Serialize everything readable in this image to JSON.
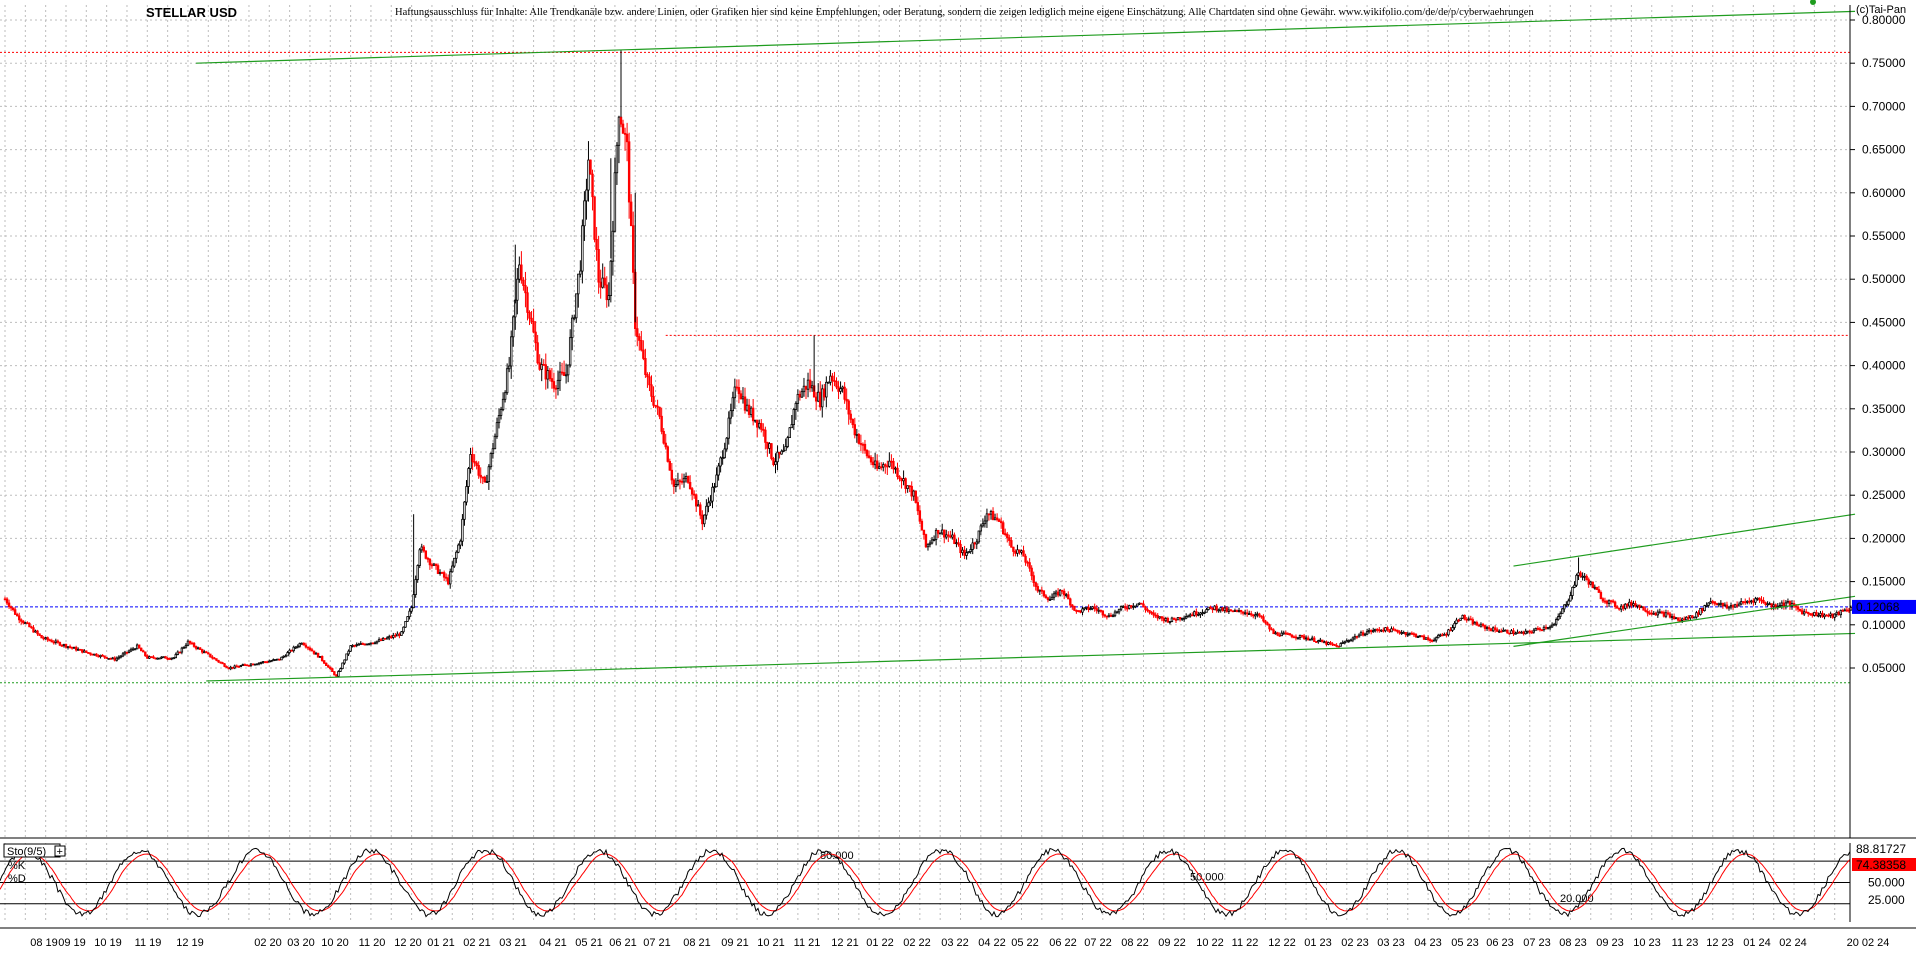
{
  "header": {
    "title": "STELLAR USD",
    "disclaimer": "Haftungsausschluss für Inhalte: Alle Trendkanäle bzw. andere Linien, oder Grafiken hier sind keine Empfehlungen, oder Beratung, sondern die zeigen lediglich meine eigene Einschätzung. Alle Chartdaten sind ohne Gewähr.  www.wikifolio.com/de/de/p/cyberwaehrungen",
    "copyright": "(c)Tai-Pan"
  },
  "colors": {
    "background": "#ffffff",
    "grid": "#bdbdbd",
    "candle_up": "#000000",
    "candle_down": "#ff0000",
    "trendline": "#1f9c1f",
    "current_price_line": "#0000ff",
    "resistance_line": "#ff0000",
    "price_badge": "#0000ff",
    "percent_d_badge": "#ff0000"
  },
  "chart_data": [
    {
      "type": "candlestick",
      "title": "STELLAR USD",
      "ylim": [
        0.03,
        0.81
      ],
      "y_ticks": [
        "0.80000",
        "0.75000",
        "0.70000",
        "0.65000",
        "0.60000",
        "0.55000",
        "0.50000",
        "0.45000",
        "0.40000",
        "0.35000",
        "0.30000",
        "0.25000",
        "0.20000",
        "0.15000",
        "0.10000",
        "0.05000"
      ],
      "y_tick_values": [
        0.8,
        0.75,
        0.7,
        0.65,
        0.6,
        0.55,
        0.5,
        0.45,
        0.4,
        0.35,
        0.3,
        0.25,
        0.2,
        0.15,
        0.1,
        0.05
      ],
      "x_ticks": [
        "08 19",
        "09 19",
        "10 19",
        "11 19",
        "12 19",
        "02 20",
        "03 20",
        "10 20",
        "11 20",
        "12 20",
        "01 21",
        "02 21",
        "03 21",
        "04 21",
        "05 21",
        "06 21",
        "07 21",
        "08 21",
        "09 21",
        "10 21",
        "11 21",
        "12 21",
        "01 22",
        "02 22",
        "03 22",
        "04 22",
        "05 22",
        "06 22",
        "07 22",
        "08 22",
        "09 22",
        "10 22",
        "11 22",
        "12 22",
        "01 23",
        "02 23",
        "03 23",
        "04 23",
        "05 23",
        "06 23",
        "07 23",
        "08 23",
        "09 23",
        "10 23",
        "11 23",
        "12 23",
        "01 24",
        "02 24",
        "20 02 24"
      ],
      "current_price": 0.12068,
      "current_price_label": "0.12068",
      "resistance_level": 0.7625,
      "secondary_resistance_level": 0.435,
      "support_level": 0.033,
      "price_path": [
        {
          "t": 0.0,
          "p": 0.13
        },
        {
          "t": 0.6,
          "p": 0.11
        },
        {
          "t": 1.8,
          "p": 0.085
        },
        {
          "t": 4.0,
          "p": 0.068
        },
        {
          "t": 5.4,
          "p": 0.06
        },
        {
          "t": 6.5,
          "p": 0.075
        },
        {
          "t": 7.0,
          "p": 0.062
        },
        {
          "t": 8.3,
          "p": 0.062
        },
        {
          "t": 9.0,
          "p": 0.08
        },
        {
          "t": 10.0,
          "p": 0.065
        },
        {
          "t": 11.0,
          "p": 0.05
        },
        {
          "t": 12.2,
          "p": 0.055
        },
        {
          "t": 13.5,
          "p": 0.06
        },
        {
          "t": 14.6,
          "p": 0.08
        },
        {
          "t": 15.5,
          "p": 0.062
        },
        {
          "t": 16.3,
          "p": 0.04
        },
        {
          "t": 17.0,
          "p": 0.075
        },
        {
          "t": 18.5,
          "p": 0.082
        },
        {
          "t": 19.5,
          "p": 0.09
        },
        {
          "t": 20.0,
          "p": 0.12
        },
        {
          "t": 20.4,
          "p": 0.19
        },
        {
          "t": 21.0,
          "p": 0.17
        },
        {
          "t": 21.8,
          "p": 0.15
        },
        {
          "t": 22.4,
          "p": 0.2
        },
        {
          "t": 22.9,
          "p": 0.3
        },
        {
          "t": 23.6,
          "p": 0.26
        },
        {
          "t": 24.2,
          "p": 0.33
        },
        {
          "t": 24.8,
          "p": 0.4
        },
        {
          "t": 25.3,
          "p": 0.52
        },
        {
          "t": 25.8,
          "p": 0.46
        },
        {
          "t": 26.3,
          "p": 0.4
        },
        {
          "t": 27.0,
          "p": 0.38
        },
        {
          "t": 27.6,
          "p": 0.39
        },
        {
          "t": 28.3,
          "p": 0.52
        },
        {
          "t": 28.7,
          "p": 0.64
        },
        {
          "t": 29.2,
          "p": 0.5
        },
        {
          "t": 29.7,
          "p": 0.48
        },
        {
          "t": 30.2,
          "p": 0.7
        },
        {
          "t": 30.6,
          "p": 0.65
        },
        {
          "t": 31.0,
          "p": 0.45
        },
        {
          "t": 31.6,
          "p": 0.38
        },
        {
          "t": 32.2,
          "p": 0.34
        },
        {
          "t": 32.9,
          "p": 0.26
        },
        {
          "t": 33.6,
          "p": 0.27
        },
        {
          "t": 34.3,
          "p": 0.22
        },
        {
          "t": 35.0,
          "p": 0.27
        },
        {
          "t": 35.5,
          "p": 0.32
        },
        {
          "t": 36.0,
          "p": 0.38
        },
        {
          "t": 36.5,
          "p": 0.35
        },
        {
          "t": 37.2,
          "p": 0.33
        },
        {
          "t": 37.8,
          "p": 0.29
        },
        {
          "t": 38.4,
          "p": 0.3
        },
        {
          "t": 38.9,
          "p": 0.36
        },
        {
          "t": 39.5,
          "p": 0.38
        },
        {
          "t": 40.1,
          "p": 0.36
        },
        {
          "t": 40.6,
          "p": 0.39
        },
        {
          "t": 41.2,
          "p": 0.37
        },
        {
          "t": 41.7,
          "p": 0.33
        },
        {
          "t": 42.3,
          "p": 0.3
        },
        {
          "t": 42.9,
          "p": 0.28
        },
        {
          "t": 43.5,
          "p": 0.29
        },
        {
          "t": 44.1,
          "p": 0.27
        },
        {
          "t": 44.7,
          "p": 0.25
        },
        {
          "t": 45.3,
          "p": 0.19
        },
        {
          "t": 45.9,
          "p": 0.21
        },
        {
          "t": 46.6,
          "p": 0.2
        },
        {
          "t": 47.2,
          "p": 0.18
        },
        {
          "t": 47.8,
          "p": 0.2
        },
        {
          "t": 48.3,
          "p": 0.23
        },
        {
          "t": 48.9,
          "p": 0.22
        },
        {
          "t": 49.5,
          "p": 0.19
        },
        {
          "t": 50.1,
          "p": 0.18
        },
        {
          "t": 50.8,
          "p": 0.14
        },
        {
          "t": 51.4,
          "p": 0.13
        },
        {
          "t": 52.0,
          "p": 0.14
        },
        {
          "t": 52.7,
          "p": 0.115
        },
        {
          "t": 53.5,
          "p": 0.12
        },
        {
          "t": 54.3,
          "p": 0.11
        },
        {
          "t": 55.0,
          "p": 0.12
        },
        {
          "t": 55.8,
          "p": 0.125
        },
        {
          "t": 56.5,
          "p": 0.11
        },
        {
          "t": 57.3,
          "p": 0.105
        },
        {
          "t": 58.0,
          "p": 0.11
        },
        {
          "t": 58.8,
          "p": 0.115
        },
        {
          "t": 59.5,
          "p": 0.12
        },
        {
          "t": 60.3,
          "p": 0.115
        },
        {
          "t": 61.0,
          "p": 0.115
        },
        {
          "t": 61.7,
          "p": 0.11
        },
        {
          "t": 62.4,
          "p": 0.09
        },
        {
          "t": 63.2,
          "p": 0.088
        },
        {
          "t": 64.0,
          "p": 0.085
        },
        {
          "t": 64.8,
          "p": 0.08
        },
        {
          "t": 65.5,
          "p": 0.075
        },
        {
          "t": 66.3,
          "p": 0.085
        },
        {
          "t": 67.0,
          "p": 0.092
        },
        {
          "t": 67.8,
          "p": 0.095
        },
        {
          "t": 68.6,
          "p": 0.092
        },
        {
          "t": 69.4,
          "p": 0.088
        },
        {
          "t": 70.1,
          "p": 0.082
        },
        {
          "t": 70.9,
          "p": 0.09
        },
        {
          "t": 71.6,
          "p": 0.11
        },
        {
          "t": 72.4,
          "p": 0.1
        },
        {
          "t": 73.1,
          "p": 0.095
        },
        {
          "t": 73.9,
          "p": 0.092
        },
        {
          "t": 74.7,
          "p": 0.09
        },
        {
          "t": 75.4,
          "p": 0.095
        },
        {
          "t": 76.2,
          "p": 0.1
        },
        {
          "t": 76.9,
          "p": 0.13
        },
        {
          "t": 77.4,
          "p": 0.16
        },
        {
          "t": 77.9,
          "p": 0.15
        },
        {
          "t": 78.6,
          "p": 0.13
        },
        {
          "t": 79.4,
          "p": 0.12
        },
        {
          "t": 80.1,
          "p": 0.125
        },
        {
          "t": 80.9,
          "p": 0.115
        },
        {
          "t": 81.7,
          "p": 0.112
        },
        {
          "t": 82.4,
          "p": 0.105
        },
        {
          "t": 83.2,
          "p": 0.112
        },
        {
          "t": 83.9,
          "p": 0.128
        },
        {
          "t": 84.7,
          "p": 0.12
        },
        {
          "t": 85.4,
          "p": 0.125
        },
        {
          "t": 86.2,
          "p": 0.13
        },
        {
          "t": 86.9,
          "p": 0.122
        },
        {
          "t": 87.7,
          "p": 0.125
        },
        {
          "t": 88.4,
          "p": 0.115
        },
        {
          "t": 89.2,
          "p": 0.112
        },
        {
          "t": 89.9,
          "p": 0.11
        },
        {
          "t": 90.6,
          "p": 0.118
        },
        {
          "t": 91.0,
          "p": 0.12
        }
      ],
      "trendlines": [
        {
          "t1": 9.4,
          "p1": 0.75,
          "t2": 91.0,
          "p2": 0.81
        },
        {
          "t1": 9.9,
          "p1": 0.035,
          "t2": 91.0,
          "p2": 0.09
        },
        {
          "t1": 74.2,
          "p1": 0.168,
          "t2": 91.0,
          "p2": 0.228
        },
        {
          "t1": 74.2,
          "p1": 0.075,
          "t2": 91.0,
          "p2": 0.133
        }
      ]
    },
    {
      "type": "line",
      "title": "Sto(9/5)",
      "series": [
        {
          "name": "%K",
          "color": "#000000",
          "latest": 88.81727,
          "latest_label": "88.81727"
        },
        {
          "name": "%D",
          "color": "#ff0000",
          "latest": 74.38358,
          "latest_label": "74.38358"
        }
      ],
      "ylim": [
        0,
        100
      ],
      "y_ticks": [
        "50.000",
        "25.000"
      ],
      "y_tick_values": [
        50,
        25
      ],
      "reference_levels": [
        {
          "value": 80,
          "label": "80.000"
        },
        {
          "value": 50,
          "label": "50.000"
        },
        {
          "value": 20,
          "label": "20.000"
        }
      ]
    }
  ]
}
